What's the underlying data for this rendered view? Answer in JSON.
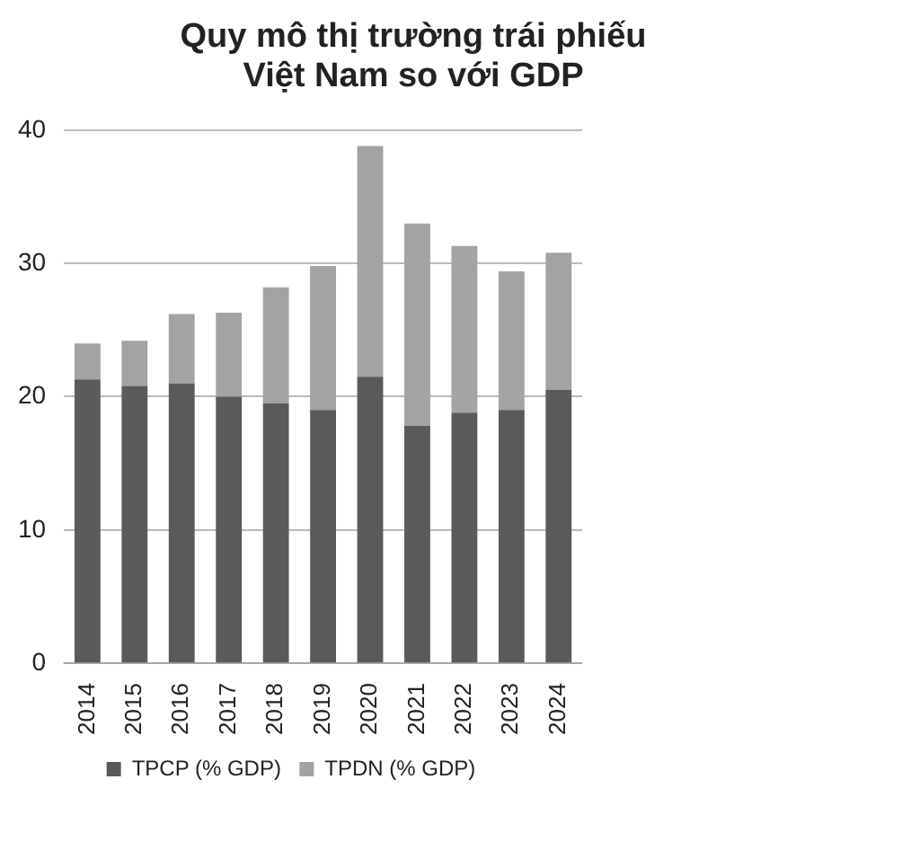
{
  "chart_data": {
    "type": "bar",
    "title": "Quy mô thị trường trái phiếu\nViệt Nam so với GDP",
    "categories": [
      "2014",
      "2015",
      "2016",
      "2017",
      "2018",
      "2019",
      "2020",
      "2021",
      "2022",
      "2023",
      "2024"
    ],
    "stacked": true,
    "series": [
      {
        "name": "TPCP (% GDP)",
        "color": "#5a5a5a",
        "values": [
          21.3,
          20.8,
          21,
          20,
          19.5,
          19,
          21.5,
          17.8,
          18.8,
          19,
          20.5
        ]
      },
      {
        "name": "TPDN (% GDP)",
        "color": "#a3a3a3",
        "values": [
          2.7,
          3.4,
          5.2,
          6.3,
          8.7,
          10.8,
          17.3,
          15.2,
          12.5,
          10.4,
          10.3
        ]
      }
    ],
    "ylim": [
      0,
      40
    ],
    "yticks": [
      0,
      10,
      20,
      30,
      40
    ],
    "grid": "y",
    "legend": "bottom"
  }
}
